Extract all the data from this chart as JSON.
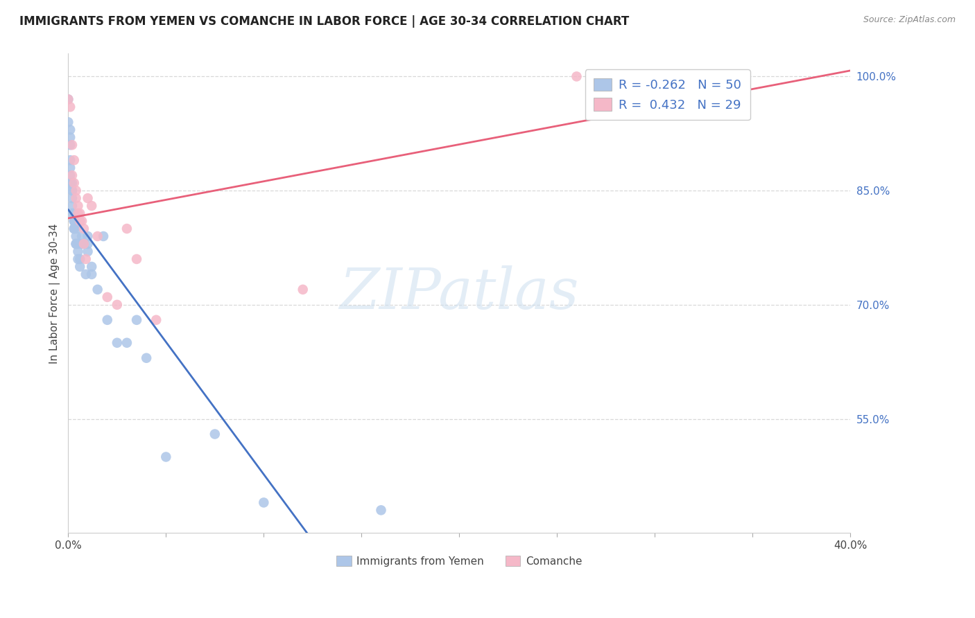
{
  "title": "IMMIGRANTS FROM YEMEN VS COMANCHE IN LABOR FORCE | AGE 30-34 CORRELATION CHART",
  "source": "Source: ZipAtlas.com",
  "ylabel": "In Labor Force | Age 30-34",
  "xlim": [
    0.0,
    0.4
  ],
  "ylim": [
    0.4,
    1.03
  ],
  "xticks": [
    0.0,
    0.05,
    0.1,
    0.15,
    0.2,
    0.25,
    0.3,
    0.35,
    0.4
  ],
  "xticklabels": [
    "0.0%",
    "",
    "",
    "",
    "",
    "",
    "",
    "",
    "40.0%"
  ],
  "yticks": [
    0.55,
    0.7,
    0.85,
    1.0
  ],
  "yticklabels": [
    "55.0%",
    "70.0%",
    "85.0%",
    "100.0%"
  ],
  "watermark_text": "ZIPatlas",
  "background_color": "#ffffff",
  "grid_color": "#d8d8d8",
  "yemen_color": "#adc6e8",
  "comanche_color": "#f5b8c8",
  "yemen_line_color": "#4472c4",
  "comanche_line_color": "#e8607a",
  "yemen_R": -0.262,
  "yemen_N": 50,
  "comanche_R": 0.432,
  "comanche_N": 29,
  "yemen_x": [
    0.0,
    0.0,
    0.001,
    0.001,
    0.001,
    0.001,
    0.001,
    0.001,
    0.001,
    0.001,
    0.002,
    0.002,
    0.002,
    0.002,
    0.002,
    0.002,
    0.003,
    0.003,
    0.003,
    0.003,
    0.003,
    0.004,
    0.004,
    0.004,
    0.004,
    0.005,
    0.005,
    0.005,
    0.006,
    0.006,
    0.007,
    0.007,
    0.008,
    0.009,
    0.01,
    0.01,
    0.01,
    0.012,
    0.012,
    0.015,
    0.018,
    0.02,
    0.025,
    0.03,
    0.035,
    0.04,
    0.05,
    0.075,
    0.1,
    0.16
  ],
  "yemen_y": [
    0.97,
    0.94,
    0.93,
    0.92,
    0.91,
    0.89,
    0.88,
    0.87,
    0.86,
    0.86,
    0.86,
    0.85,
    0.85,
    0.84,
    0.83,
    0.82,
    0.82,
    0.81,
    0.81,
    0.8,
    0.8,
    0.8,
    0.79,
    0.78,
    0.78,
    0.78,
    0.77,
    0.76,
    0.76,
    0.75,
    0.79,
    0.78,
    0.78,
    0.74,
    0.79,
    0.78,
    0.77,
    0.75,
    0.74,
    0.72,
    0.79,
    0.68,
    0.65,
    0.65,
    0.68,
    0.63,
    0.5,
    0.53,
    0.44,
    0.43
  ],
  "comanche_x": [
    0.0,
    0.001,
    0.002,
    0.002,
    0.003,
    0.003,
    0.004,
    0.004,
    0.005,
    0.005,
    0.006,
    0.006,
    0.007,
    0.008,
    0.008,
    0.009,
    0.01,
    0.012,
    0.015,
    0.02,
    0.025,
    0.03,
    0.035,
    0.045,
    0.12,
    0.26,
    0.31,
    0.32,
    0.34
  ],
  "comanche_y": [
    0.97,
    0.96,
    0.91,
    0.87,
    0.89,
    0.86,
    0.85,
    0.84,
    0.83,
    0.82,
    0.82,
    0.81,
    0.81,
    0.8,
    0.78,
    0.76,
    0.84,
    0.83,
    0.79,
    0.71,
    0.7,
    0.8,
    0.76,
    0.68,
    0.72,
    1.0,
    1.0,
    0.99,
    0.98
  ],
  "legend_label_yemen": "Immigrants from Yemen",
  "legend_label_comanche": "Comanche",
  "right_tick_color": "#4472c4",
  "title_fontsize": 12,
  "axis_label_fontsize": 11,
  "tick_fontsize": 11,
  "legend_fontsize": 13
}
